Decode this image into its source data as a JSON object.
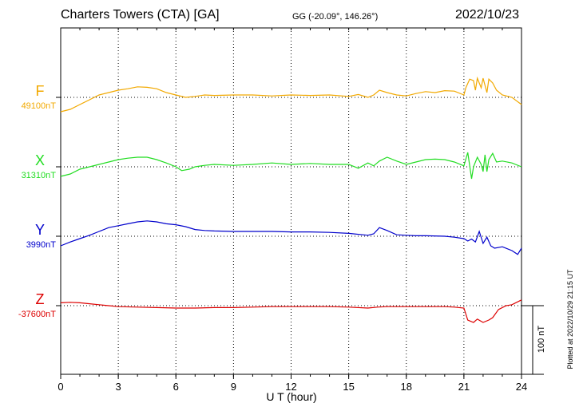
{
  "header": {
    "station": "Charters Towers (CTA)  [GA]",
    "coords": "GG (-20.09°, 146.26°)",
    "date": "2022/10/23"
  },
  "plotted_note": "Plotted at 2022/10/29 21:15 UT",
  "scale_bar_label": "100 nT",
  "chart_data": {
    "type": "line",
    "xlabel": "U T (hour)",
    "xlim": [
      0,
      24
    ],
    "x_ticks": [
      "0",
      "3",
      "6",
      "9",
      "12",
      "15",
      "18",
      "21",
      "24"
    ],
    "grid": true,
    "scale_bar_nT": 100,
    "channels": [
      {
        "name": "F",
        "baseline_label": "49100nT",
        "color": "#f2a900",
        "points": [
          [
            0,
            -30
          ],
          [
            0.5,
            -25
          ],
          [
            1,
            -15
          ],
          [
            1.5,
            -5
          ],
          [
            2,
            5
          ],
          [
            2.5,
            10
          ],
          [
            3,
            15
          ],
          [
            3.5,
            18
          ],
          [
            4,
            22
          ],
          [
            4.5,
            21
          ],
          [
            5,
            18
          ],
          [
            5.5,
            10
          ],
          [
            6,
            5
          ],
          [
            6.5,
            0
          ],
          [
            7,
            2
          ],
          [
            7.5,
            5
          ],
          [
            8,
            4
          ],
          [
            9,
            5
          ],
          [
            10,
            5
          ],
          [
            11,
            3
          ],
          [
            12,
            5
          ],
          [
            13,
            4
          ],
          [
            14,
            5
          ],
          [
            15,
            2
          ],
          [
            15.5,
            6
          ],
          [
            16,
            0
          ],
          [
            16.3,
            5
          ],
          [
            16.6,
            15
          ],
          [
            17,
            10
          ],
          [
            17.5,
            5
          ],
          [
            18,
            3
          ],
          [
            18.5,
            8
          ],
          [
            19,
            12
          ],
          [
            19.5,
            10
          ],
          [
            20,
            14
          ],
          [
            20.5,
            13
          ],
          [
            21,
            5
          ],
          [
            21.1,
            20
          ],
          [
            21.3,
            38
          ],
          [
            21.5,
            35
          ],
          [
            21.6,
            15
          ],
          [
            21.7,
            40
          ],
          [
            21.9,
            20
          ],
          [
            22,
            40
          ],
          [
            22.2,
            10
          ],
          [
            22.3,
            38
          ],
          [
            22.5,
            30
          ],
          [
            22.7,
            15
          ],
          [
            23,
            5
          ],
          [
            23.5,
            0
          ],
          [
            24,
            -15
          ]
        ]
      },
      {
        "name": "X",
        "baseline_label": "31310nT",
        "color": "#22dd22",
        "points": [
          [
            0,
            -20
          ],
          [
            0.5,
            -15
          ],
          [
            1,
            -5
          ],
          [
            1.5,
            0
          ],
          [
            2,
            5
          ],
          [
            2.5,
            10
          ],
          [
            3,
            15
          ],
          [
            3.5,
            18
          ],
          [
            4,
            20
          ],
          [
            4.5,
            20
          ],
          [
            5,
            15
          ],
          [
            5.5,
            8
          ],
          [
            6,
            0
          ],
          [
            6.3,
            -8
          ],
          [
            6.7,
            -5
          ],
          [
            7,
            0
          ],
          [
            7.5,
            3
          ],
          [
            8,
            5
          ],
          [
            9,
            3
          ],
          [
            10,
            5
          ],
          [
            11,
            8
          ],
          [
            12,
            5
          ],
          [
            13,
            7
          ],
          [
            14,
            5
          ],
          [
            15,
            5
          ],
          [
            15.5,
            -3
          ],
          [
            16,
            8
          ],
          [
            16.3,
            2
          ],
          [
            16.6,
            12
          ],
          [
            17,
            20
          ],
          [
            17.5,
            12
          ],
          [
            18,
            5
          ],
          [
            18.5,
            10
          ],
          [
            19,
            15
          ],
          [
            19.5,
            16
          ],
          [
            20,
            15
          ],
          [
            20.5,
            10
          ],
          [
            21,
            2
          ],
          [
            21.2,
            30
          ],
          [
            21.4,
            -25
          ],
          [
            21.5,
            0
          ],
          [
            21.7,
            20
          ],
          [
            21.9,
            5
          ],
          [
            22,
            -10
          ],
          [
            22.1,
            25
          ],
          [
            22.2,
            -10
          ],
          [
            22.3,
            15
          ],
          [
            22.5,
            28
          ],
          [
            22.7,
            10
          ],
          [
            23,
            12
          ],
          [
            23.5,
            8
          ],
          [
            24,
            0
          ]
        ]
      },
      {
        "name": "Y",
        "baseline_label": "3990nT",
        "color": "#0000cc",
        "points": [
          [
            0,
            -20
          ],
          [
            0.5,
            -12
          ],
          [
            1,
            -5
          ],
          [
            1.5,
            2
          ],
          [
            2,
            10
          ],
          [
            2.5,
            18
          ],
          [
            3,
            22
          ],
          [
            3.5,
            26
          ],
          [
            4,
            30
          ],
          [
            4.5,
            32
          ],
          [
            5,
            30
          ],
          [
            5.5,
            26
          ],
          [
            6,
            24
          ],
          [
            6.5,
            20
          ],
          [
            7,
            14
          ],
          [
            7.5,
            12
          ],
          [
            8,
            11
          ],
          [
            9,
            10
          ],
          [
            10,
            10
          ],
          [
            11,
            10
          ],
          [
            12,
            9
          ],
          [
            13,
            9
          ],
          [
            14,
            8
          ],
          [
            15,
            6
          ],
          [
            16,
            2
          ],
          [
            16.3,
            5
          ],
          [
            16.6,
            18
          ],
          [
            17,
            12
          ],
          [
            17.5,
            3
          ],
          [
            18,
            2
          ],
          [
            18.5,
            1
          ],
          [
            19,
            1
          ],
          [
            20,
            0
          ],
          [
            20.5,
            -2
          ],
          [
            21,
            -5
          ],
          [
            21.2,
            -10
          ],
          [
            21.4,
            -6
          ],
          [
            21.6,
            -12
          ],
          [
            21.8,
            10
          ],
          [
            22,
            -15
          ],
          [
            22.2,
            -2
          ],
          [
            22.4,
            -20
          ],
          [
            22.6,
            -25
          ],
          [
            23,
            -22
          ],
          [
            23.5,
            -30
          ],
          [
            23.8,
            -38
          ],
          [
            24,
            -25
          ]
        ]
      },
      {
        "name": "Z",
        "baseline_label": "-37600nT",
        "color": "#dd0000",
        "points": [
          [
            0,
            6
          ],
          [
            0.5,
            7
          ],
          [
            1,
            6
          ],
          [
            1.5,
            4
          ],
          [
            2,
            2
          ],
          [
            2.5,
            0
          ],
          [
            3,
            -2
          ],
          [
            4,
            -3
          ],
          [
            5,
            -4
          ],
          [
            6,
            -5
          ],
          [
            7,
            -5
          ],
          [
            8,
            -4
          ],
          [
            9,
            -4
          ],
          [
            10,
            -3
          ],
          [
            11,
            -2
          ],
          [
            12,
            -2
          ],
          [
            13,
            -2
          ],
          [
            14,
            -2
          ],
          [
            15,
            -3
          ],
          [
            16,
            -5
          ],
          [
            16.5,
            -3
          ],
          [
            17,
            -2
          ],
          [
            18,
            -2
          ],
          [
            19,
            -2
          ],
          [
            20,
            -2
          ],
          [
            20.5,
            -3
          ],
          [
            21,
            -5
          ],
          [
            21.2,
            -30
          ],
          [
            21.5,
            -35
          ],
          [
            21.7,
            -28
          ],
          [
            22,
            -35
          ],
          [
            22.3,
            -30
          ],
          [
            22.5,
            -25
          ],
          [
            22.8,
            -8
          ],
          [
            23.2,
            0
          ],
          [
            23.5,
            2
          ],
          [
            24,
            12
          ]
        ]
      }
    ]
  }
}
